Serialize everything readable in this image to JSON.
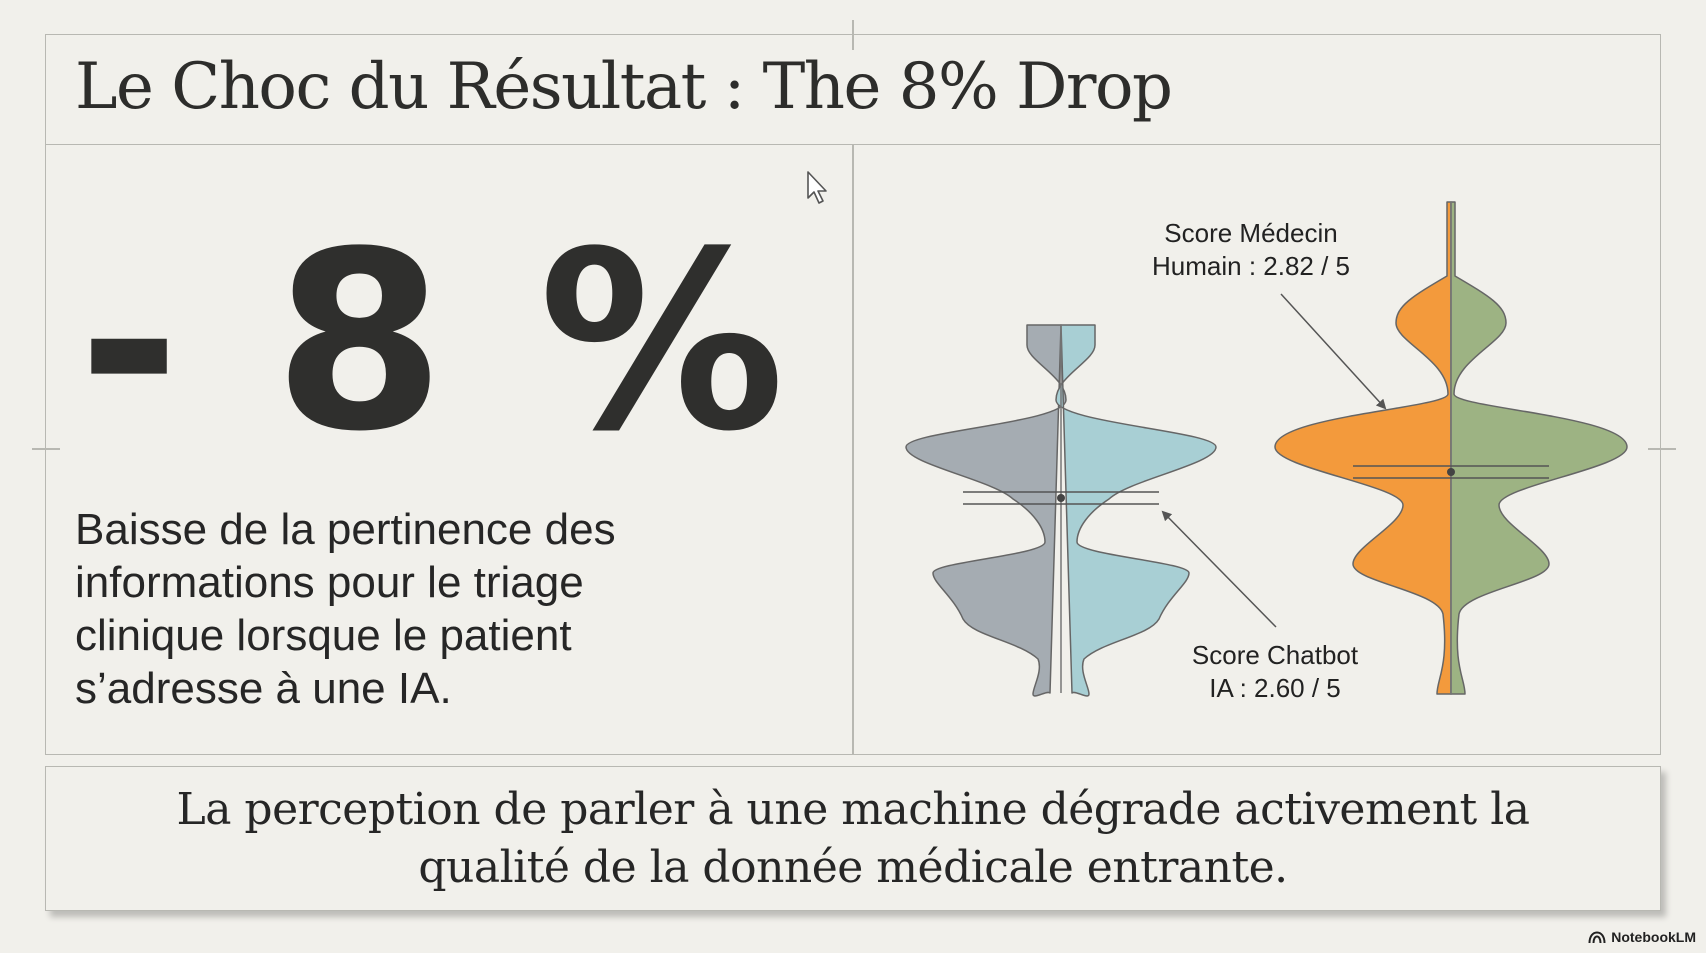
{
  "slide": {
    "title": "Le Choc du Résultat : The 8% Drop",
    "stat": "- 8 %",
    "description": "Baisse de la pertinence des informations pour le triage clinique lorsque le patient s’adresse à une IA.",
    "conclusion_line1": "La perception de parler à une machine dégrade activement la",
    "conclusion_line2": "qualité de la donnée médicale entrante.",
    "brand": "NotebookLM",
    "icons": {
      "cursor": "mouse-pointer-icon",
      "brand": "notebooklm-logo-icon"
    }
  },
  "diagram": {
    "human_label_line1": "Score Médecin",
    "human_label_line2": "Humain : 2.82 / 5",
    "chatbot_label_line1": "Score Chatbot",
    "chatbot_label_line2": "IA : 2.60 / 5",
    "colors": {
      "chatbot_left": "#a5acb2",
      "chatbot_right": "#a8cfd4",
      "human_left": "#f39a3c",
      "human_right": "#9db383",
      "outline": "#666666"
    }
  }
}
